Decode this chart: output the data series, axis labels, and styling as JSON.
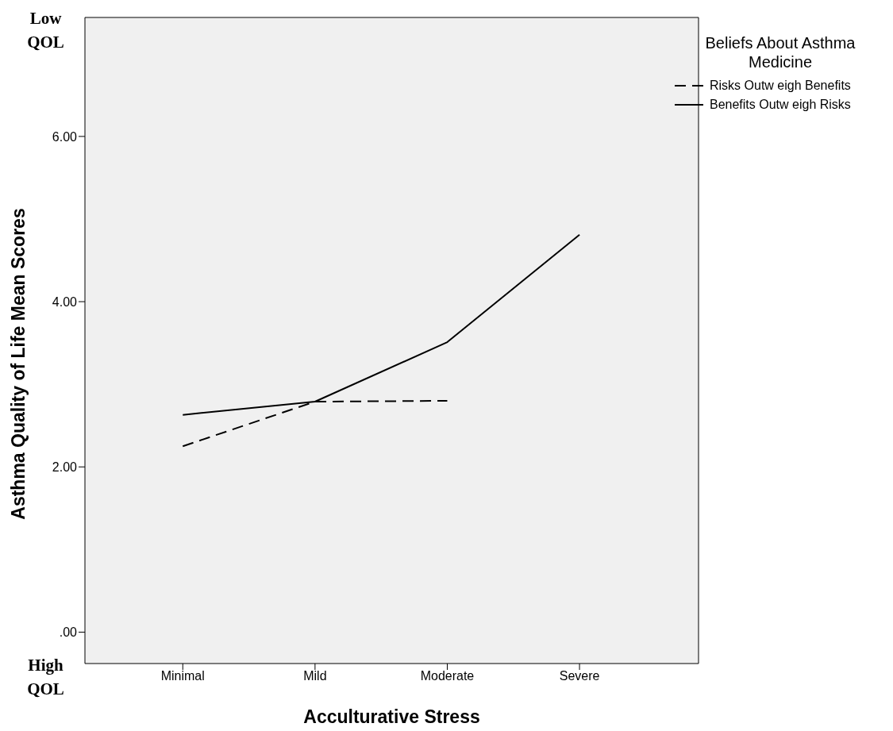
{
  "chart_data": {
    "type": "line",
    "xlabel": "Acculturative Stress",
    "ylabel": "Asthma Quality of Life Mean Scores",
    "legend_title": "Beliefs About Asthma Medicine",
    "categories": [
      "Minimal",
      "Mild",
      "Moderate",
      "Severe"
    ],
    "series": [
      {
        "name": "Risks Outw eigh Benefits",
        "color": "#000000",
        "line_style": "dashed",
        "values": [
          2.25,
          2.79,
          2.8,
          null
        ]
      },
      {
        "name": "Benefits Outw eigh Risks",
        "color": "#000000",
        "line_style": "solid",
        "values": [
          2.63,
          2.79,
          3.51,
          4.81
        ]
      }
    ],
    "ylim": [
      -0.38,
      7.44
    ],
    "yticks": [
      {
        "value": 0,
        "label": ".00"
      },
      {
        "value": 2,
        "label": "2.00"
      },
      {
        "value": 4,
        "label": "4.00"
      },
      {
        "value": 6,
        "label": "6.00"
      }
    ],
    "grid": false,
    "legend": "top right",
    "marker": "none",
    "annotations": [
      "Low QOL",
      "High QOL"
    ]
  }
}
